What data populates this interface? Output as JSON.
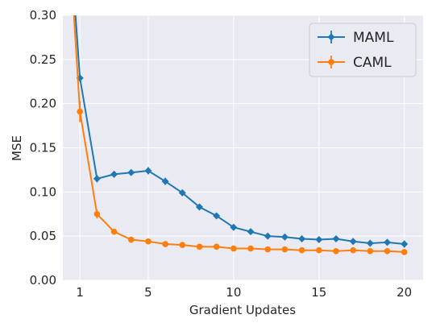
{
  "chart_data": {
    "type": "line",
    "xlabel": "Gradient Updates",
    "ylabel": "MSE",
    "xlim": [
      0,
      21.1
    ],
    "ylim": [
      0,
      0.3
    ],
    "x_ticks": [
      1,
      5,
      10,
      15,
      20
    ],
    "y_ticks": [
      0.0,
      0.05,
      0.1,
      0.15,
      0.2,
      0.25,
      0.3
    ],
    "x_tick_labels": [
      "1",
      "5",
      "10",
      "15",
      "20"
    ],
    "y_tick_labels": [
      "0.00",
      "0.05",
      "0.10",
      "0.15",
      "0.20",
      "0.25",
      "0.30"
    ],
    "grid": true,
    "legend_position": "top-right",
    "background_color": "#eaeaf2",
    "grid_color": "#ffffff",
    "series": [
      {
        "name": "MAML",
        "color": "#1f77b4",
        "marker": "diamond",
        "x": [
          0,
          1,
          2,
          3,
          4,
          5,
          6,
          7,
          8,
          9,
          10,
          11,
          12,
          13,
          14,
          15,
          16,
          17,
          18,
          19,
          20
        ],
        "values": [
          0.5,
          0.229,
          0.115,
          0.12,
          0.122,
          0.124,
          0.112,
          0.099,
          0.083,
          0.073,
          0.06,
          0.055,
          0.05,
          0.049,
          0.047,
          0.046,
          0.047,
          0.044,
          0.042,
          0.043,
          0.041
        ],
        "errors": [
          0.0,
          0.004,
          0.004,
          0.003,
          0.003,
          0.004,
          0.004,
          0.003,
          0.003,
          0.003,
          0.003,
          0.003,
          0.003,
          0.003,
          0.003,
          0.003,
          0.003,
          0.003,
          0.003,
          0.003,
          0.004
        ]
      },
      {
        "name": "CAML",
        "color": "#ff7f0e",
        "marker": "circle",
        "x": [
          0,
          1,
          2,
          3,
          4,
          5,
          6,
          7,
          8,
          9,
          10,
          11,
          12,
          13,
          14,
          15,
          16,
          17,
          18,
          19,
          20
        ],
        "values": [
          0.5,
          0.191,
          0.075,
          0.055,
          0.046,
          0.044,
          0.041,
          0.04,
          0.038,
          0.038,
          0.036,
          0.036,
          0.035,
          0.035,
          0.034,
          0.034,
          0.033,
          0.034,
          0.033,
          0.033,
          0.032
        ],
        "errors": [
          0.0,
          0.012,
          0.005,
          0.003,
          0.002,
          0.002,
          0.002,
          0.002,
          0.002,
          0.002,
          0.002,
          0.002,
          0.002,
          0.002,
          0.002,
          0.002,
          0.002,
          0.002,
          0.002,
          0.002,
          0.002
        ]
      }
    ]
  }
}
